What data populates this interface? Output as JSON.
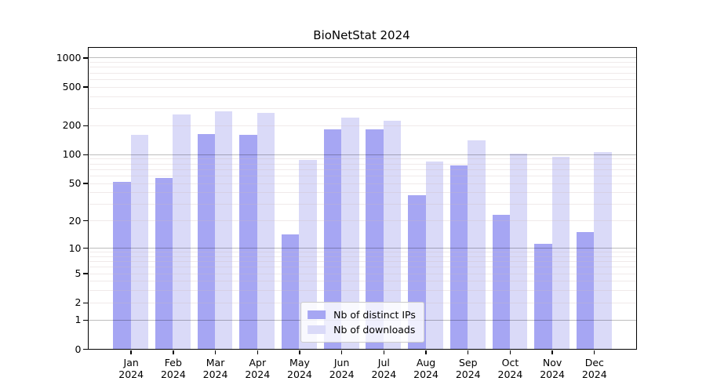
{
  "chart_data": {
    "type": "bar",
    "title": "BioNetStat 2024",
    "categories": [
      "Jan",
      "Feb",
      "Mar",
      "Apr",
      "May",
      "Jun",
      "Jul",
      "Aug",
      "Sep",
      "Oct",
      "Nov",
      "Dec"
    ],
    "year_label": "2024",
    "series": [
      {
        "name": "Nb of distinct IPs",
        "color": "#a6a6f3",
        "values": [
          51,
          57,
          163,
          159,
          14,
          180,
          183,
          37,
          77,
          23,
          11,
          15
        ]
      },
      {
        "name": "Nb of downloads",
        "color": "#dadaf8",
        "values": [
          158,
          260,
          278,
          268,
          87,
          242,
          222,
          84,
          139,
          101,
          94,
          105
        ]
      }
    ],
    "xlabel": "",
    "ylabel": "",
    "yscale": "log1p",
    "ylim": [
      0,
      1260
    ],
    "yticks": [
      0,
      1,
      2,
      5,
      10,
      20,
      50,
      100,
      200,
      500,
      1000
    ],
    "major_gridlines": [
      1,
      10,
      100,
      1000
    ],
    "minor_gridlines": [
      2,
      3,
      4,
      5,
      6,
      7,
      8,
      9,
      20,
      30,
      40,
      50,
      60,
      70,
      80,
      90,
      200,
      300,
      400,
      500,
      600,
      700,
      800,
      900
    ],
    "legend_position": "lower center",
    "grid": true,
    "colors": {
      "spine": "#000000",
      "major_grid": "rgba(0,0,0,0.26)",
      "minor_grid": "rgba(205,185,185,0.30)",
      "background": "#ffffff",
      "text": "#000000"
    }
  }
}
